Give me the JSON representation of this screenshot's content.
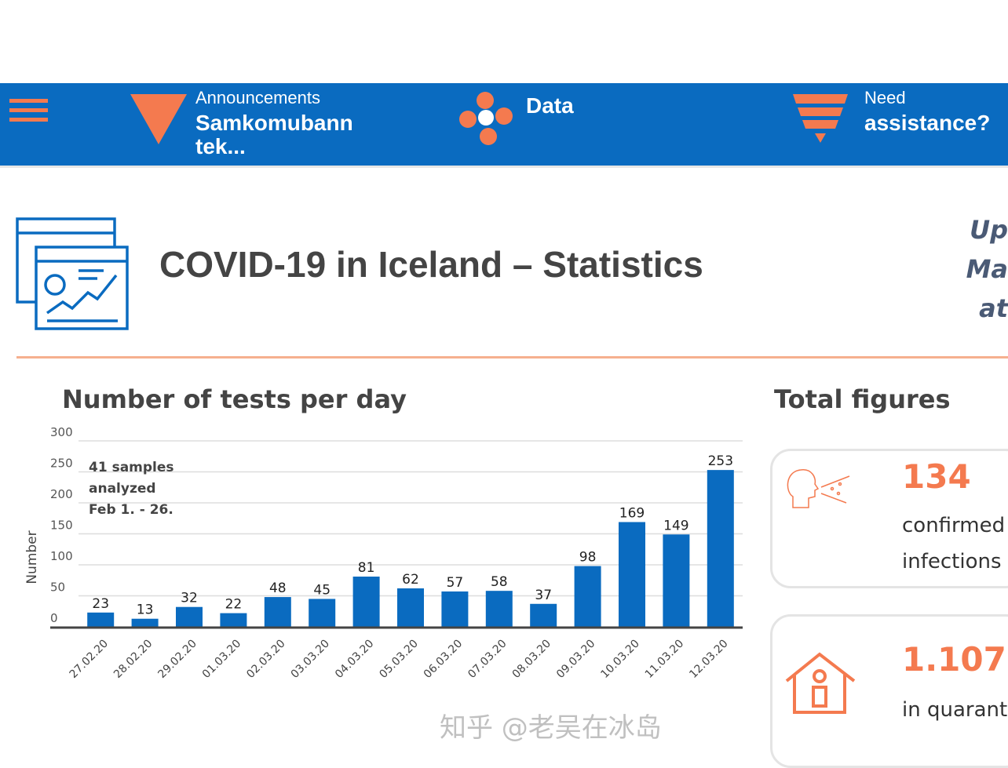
{
  "nav": {
    "announcements_label": "Announcements",
    "announcement_title": "Samkomubann tek...",
    "data_label": "Data",
    "need_label": "Need",
    "assistance_label": "assistance?"
  },
  "header": {
    "title": "COVID-19 in Iceland – Statistics",
    "updated_partial": [
      "Up",
      "Ma",
      "at"
    ]
  },
  "chart_section": {
    "title": "Number of tests per day"
  },
  "totals": {
    "title": "Total figures",
    "cards": [
      {
        "value": "134",
        "label_lines": [
          "confirmed",
          "infections"
        ]
      },
      {
        "value": "1.107",
        "label_lines": [
          "in quarant"
        ]
      }
    ]
  },
  "watermark": "知乎 @老吴在冰岛",
  "colors": {
    "nav_bg": "#0a6bc0",
    "accent": "#f47a4f",
    "bar": "#0a6bc0"
  },
  "chart_data": {
    "type": "bar",
    "title": "Number of tests per day",
    "xlabel": "",
    "ylabel": "Number",
    "ylim": [
      0,
      300
    ],
    "yticks": [
      0,
      50,
      100,
      150,
      200,
      250,
      300
    ],
    "grid": true,
    "annotation": [
      "41 samples",
      "analyzed",
      "Feb 1. - 26."
    ],
    "categories": [
      "27.02.20",
      "28.02.20",
      "29.02.20",
      "01.03.20",
      "02.03.20",
      "03.03.20",
      "04.03.20",
      "05.03.20",
      "06.03.20",
      "07.03.20",
      "08.03.20",
      "09.03.20",
      "10.03.20",
      "11.03.20",
      "12.03.20"
    ],
    "values": [
      23,
      13,
      32,
      22,
      48,
      45,
      81,
      62,
      57,
      58,
      37,
      98,
      169,
      149,
      253
    ]
  }
}
